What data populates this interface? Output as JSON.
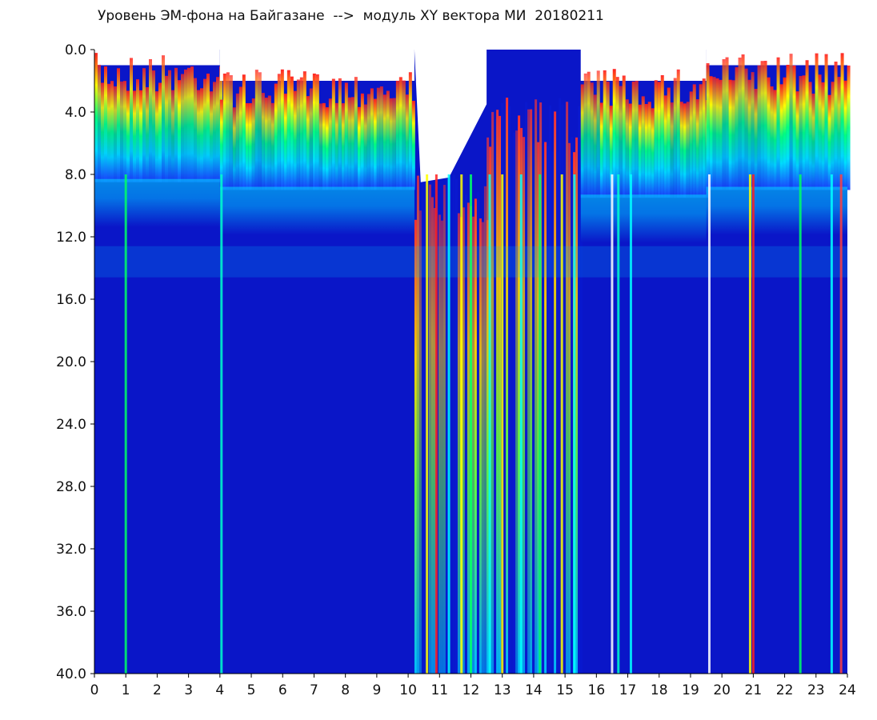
{
  "chart_data": {
    "type": "heatmap",
    "title": "Уровень ЭМ-фона на Байгазане  -->  модуль XY вектора МИ  20180211",
    "xlabel": "",
    "ylabel": "",
    "xlim": [
      0,
      24
    ],
    "ylim": [
      40.0,
      0.0
    ],
    "x_ticks": [
      "0",
      "1",
      "2",
      "3",
      "4",
      "5",
      "6",
      "7",
      "8",
      "9",
      "10",
      "11",
      "12",
      "13",
      "14",
      "15",
      "16",
      "17",
      "18",
      "19",
      "20",
      "21",
      "22",
      "23",
      "24"
    ],
    "y_ticks": [
      "0.0",
      "4.0",
      "8.0",
      "12.0",
      "16.0",
      "20.0",
      "24.0",
      "28.0",
      "32.0",
      "36.0",
      "40.0"
    ],
    "colormap": [
      "#0000c8",
      "#0060ff",
      "#00e0ff",
      "#00ff60",
      "#ffff00",
      "#ff0000",
      "#ffffff"
    ],
    "background_color": "#0a16c8",
    "regions": [
      {
        "x": [
          0.0,
          4.0
        ],
        "band_top": 1.0,
        "band_bottom": 8.5
      },
      {
        "x": [
          4.0,
          10.2
        ],
        "band_top": 2.0,
        "band_bottom": 9.0
      },
      {
        "x": [
          10.2,
          12.5
        ],
        "band_top": 8.0,
        "band_bottom": 40.0
      },
      {
        "x": [
          12.5,
          15.5
        ],
        "band_top": 3.0,
        "band_bottom": 40.0
      },
      {
        "x": [
          15.5,
          19.5
        ],
        "band_top": 2.0,
        "band_bottom": 9.5
      },
      {
        "x": [
          19.5,
          24.0
        ],
        "band_top": 1.0,
        "band_bottom": 9.0
      }
    ],
    "vertical_streaks": [
      {
        "x": 1.0,
        "color": "#00ff66"
      },
      {
        "x": 4.05,
        "color": "#00ffcc"
      },
      {
        "x": 10.6,
        "color": "#ffff00"
      },
      {
        "x": 10.9,
        "color": "#ff2020"
      },
      {
        "x": 11.3,
        "color": "#00ffff"
      },
      {
        "x": 11.7,
        "color": "#ffff00"
      },
      {
        "x": 12.0,
        "color": "#00ff66"
      },
      {
        "x": 12.6,
        "color": "#00ffff"
      },
      {
        "x": 13.0,
        "color": "#ffff00"
      },
      {
        "x": 13.6,
        "color": "#00ffff"
      },
      {
        "x": 14.2,
        "color": "#00ff66"
      },
      {
        "x": 14.9,
        "color": "#ffff00"
      },
      {
        "x": 15.3,
        "color": "#00ffff"
      },
      {
        "x": 16.5,
        "color": "#ffffff"
      },
      {
        "x": 16.7,
        "color": "#00ffcc"
      },
      {
        "x": 17.1,
        "color": "#00ffff"
      },
      {
        "x": 19.6,
        "color": "#ffffff"
      },
      {
        "x": 20.9,
        "color": "#ffff00"
      },
      {
        "x": 21.0,
        "color": "#ff2020"
      },
      {
        "x": 22.5,
        "color": "#00ff66"
      },
      {
        "x": 23.5,
        "color": "#00ffff"
      },
      {
        "x": 23.8,
        "color": "#ff4040"
      }
    ]
  }
}
